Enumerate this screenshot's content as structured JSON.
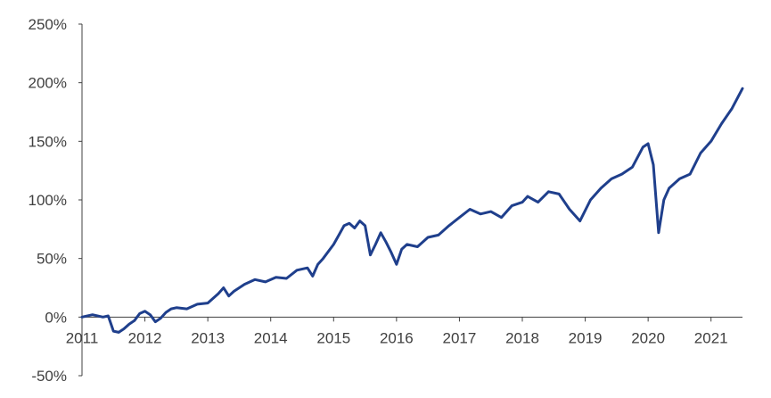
{
  "chart_data": {
    "type": "line",
    "title": "",
    "xlabel": "",
    "ylabel": "",
    "x_tick_labels": [
      "2011",
      "2012",
      "2013",
      "2014",
      "2015",
      "2016",
      "2017",
      "2018",
      "2019",
      "2020",
      "2021"
    ],
    "y_tick_labels": [
      "-50%",
      "0%",
      "50%",
      "100%",
      "150%",
      "200%",
      "250%"
    ],
    "y_ticks": [
      -50,
      0,
      50,
      100,
      150,
      200,
      250
    ],
    "ylim": [
      -50,
      250
    ],
    "xlim": [
      "2011-01",
      "2021-07"
    ],
    "grid": false,
    "legend": "none",
    "colors": {
      "line": "#1F3F8C",
      "axis": "#404040",
      "text": "#404040"
    },
    "series": [
      {
        "x": [
          "2011-01",
          "2011-03",
          "2011-05",
          "2011-06",
          "2011-07",
          "2011-08",
          "2011-09",
          "2011-10",
          "2011-11",
          "2011-12",
          "2012-01",
          "2012-02",
          "2012-03",
          "2012-04",
          "2012-05",
          "2012-06",
          "2012-07",
          "2012-09",
          "2012-11",
          "2013-01",
          "2013-03",
          "2013-04",
          "2013-05",
          "2013-06",
          "2013-08",
          "2013-10",
          "2013-12",
          "2014-02",
          "2014-04",
          "2014-06",
          "2014-08",
          "2014-09",
          "2014-10",
          "2014-11",
          "2015-01",
          "2015-02",
          "2015-03",
          "2015-04",
          "2015-05",
          "2015-06",
          "2015-07",
          "2015-08",
          "2015-09",
          "2015-10",
          "2015-11",
          "2015-12",
          "2016-01",
          "2016-02",
          "2016-03",
          "2016-05",
          "2016-07",
          "2016-09",
          "2016-11",
          "2017-01",
          "2017-03",
          "2017-05",
          "2017-07",
          "2017-09",
          "2017-11",
          "2018-01",
          "2018-02",
          "2018-04",
          "2018-06",
          "2018-08",
          "2018-10",
          "2018-12",
          "2019-02",
          "2019-04",
          "2019-06",
          "2019-08",
          "2019-10",
          "2019-12",
          "2020-01",
          "2020-02",
          "2020-03",
          "2020-04",
          "2020-05",
          "2020-07",
          "2020-09",
          "2020-11",
          "2021-01",
          "2021-03",
          "2021-05",
          "2021-07"
        ],
        "values": [
          0,
          2,
          0,
          1,
          -12,
          -13,
          -10,
          -6,
          -3,
          3,
          5,
          2,
          -4,
          -1,
          4,
          7,
          8,
          7,
          11,
          12,
          20,
          25,
          18,
          22,
          28,
          32,
          30,
          34,
          33,
          40,
          42,
          35,
          45,
          50,
          62,
          70,
          78,
          80,
          76,
          82,
          78,
          53,
          62,
          72,
          64,
          55,
          45,
          58,
          62,
          60,
          68,
          70,
          78,
          85,
          92,
          88,
          90,
          85,
          95,
          98,
          103,
          98,
          107,
          105,
          92,
          82,
          100,
          110,
          118,
          122,
          128,
          145,
          148,
          130,
          72,
          100,
          110,
          118,
          122,
          140,
          150,
          165,
          178,
          195
        ]
      }
    ]
  }
}
